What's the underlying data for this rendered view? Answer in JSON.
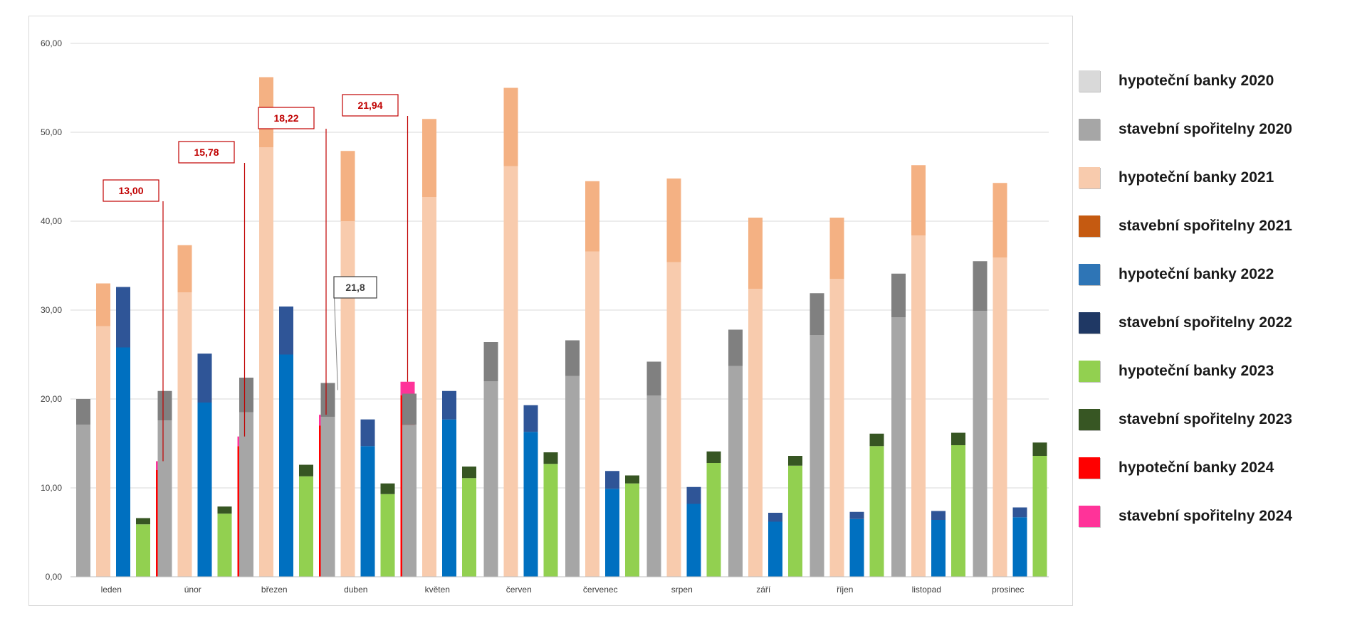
{
  "chart_data": {
    "type": "bar",
    "ylim": [
      0,
      60
    ],
    "yticks": [
      "0,00",
      "10,00",
      "20,00",
      "30,00",
      "40,00",
      "50,00",
      "60,00"
    ],
    "grid": true,
    "legend_position": "right",
    "categories": [
      "leden",
      "únor",
      "březen",
      "duben",
      "květen",
      "červen",
      "červenec",
      "srpen",
      "září",
      "říjen",
      "listopad",
      "prosinec"
    ],
    "stacks": [
      {
        "year": "2020",
        "segments": [
          {
            "name": "hypoteční banky 2020",
            "color": "#a6a6a6",
            "values": [
              17.1,
              17.6,
              18.5,
              18.0,
              17.1,
              22.0,
              22.6,
              20.4,
              23.7,
              27.2,
              29.2,
              29.9
            ]
          },
          {
            "name": "stavební spořitelny 2020",
            "color": "#808080",
            "values": [
              2.9,
              3.3,
              3.9,
              3.8,
              3.5,
              4.4,
              4.0,
              3.8,
              4.1,
              4.7,
              4.9,
              5.6
            ]
          }
        ]
      },
      {
        "year": "2021",
        "segments": [
          {
            "name": "hypoteční banky 2021",
            "color": "#f8cbad",
            "values": [
              28.2,
              32.0,
              48.3,
              40.0,
              42.7,
              46.2,
              36.6,
              35.4,
              32.4,
              33.5,
              38.4,
              35.9
            ]
          },
          {
            "name": "stavební spořitelny 2021",
            "color": "#f4b183",
            "values": [
              4.8,
              5.3,
              7.9,
              7.9,
              8.8,
              8.8,
              7.9,
              9.4,
              8.0,
              6.9,
              7.9,
              8.4
            ]
          }
        ]
      },
      {
        "year": "2022",
        "segments": [
          {
            "name": "hypoteční banky 2022",
            "color": "#0070c0",
            "values": [
              25.8,
              19.6,
              25.0,
              14.7,
              17.7,
              16.3,
              9.9,
              8.2,
              6.2,
              6.5,
              6.4,
              6.7
            ]
          },
          {
            "name": "stavební spořitelny 2022",
            "color": "#2f5597",
            "values": [
              6.8,
              5.5,
              5.4,
              3.0,
              3.2,
              3.0,
              2.0,
              1.9,
              1.0,
              0.8,
              1.0,
              1.1
            ]
          }
        ]
      },
      {
        "year": "2023",
        "segments": [
          {
            "name": "hypoteční banky 2023",
            "color": "#92d050",
            "values": [
              5.9,
              7.1,
              11.3,
              9.3,
              11.1,
              12.7,
              10.5,
              12.8,
              12.5,
              14.7,
              14.8,
              13.6
            ]
          },
          {
            "name": "stavební spořitelny 2023",
            "color": "#375623",
            "values": [
              0.7,
              0.8,
              1.3,
              1.2,
              1.3,
              1.3,
              0.9,
              1.3,
              1.1,
              1.4,
              1.4,
              1.5
            ]
          }
        ]
      },
      {
        "year": "2024",
        "segments": [
          {
            "name": "hypoteční banky 2024",
            "color": "#ff0000",
            "values": [
              12.0,
              14.7,
              17.0,
              20.4,
              null,
              null,
              null,
              null,
              null,
              null,
              null,
              null
            ]
          },
          {
            "name": "stavební spořitelny 2024",
            "color": "#ff3399",
            "values": [
              1.0,
              1.08,
              1.22,
              1.54,
              null,
              null,
              null,
              null,
              null,
              null,
              null,
              null
            ]
          }
        ]
      }
    ],
    "annotations": [
      {
        "text": "13,00",
        "category": "leden",
        "color": "#c00000"
      },
      {
        "text": "15,78",
        "category": "únor",
        "color": "#c00000"
      },
      {
        "text": "18,22",
        "category": "březen",
        "color": "#c00000"
      },
      {
        "text": "21,94",
        "category": "duben",
        "color": "#c00000"
      },
      {
        "text": "21,8",
        "category": "duben",
        "color": "#404040"
      }
    ]
  },
  "legend": {
    "items": [
      {
        "label": "hypoteční banky 2020",
        "color": "#d9d9d9"
      },
      {
        "label": "stavební spořitelny 2020",
        "color": "#a6a6a6"
      },
      {
        "label": "hypoteční banky 2021",
        "color": "#f8cbad"
      },
      {
        "label": "stavební spořitelny 2021",
        "color": "#c55a11"
      },
      {
        "label": "hypoteční banky 2022",
        "color": "#2e75b6"
      },
      {
        "label": "stavební spořitelny 2022",
        "color": "#1f3864"
      },
      {
        "label": "hypoteční banky 2023",
        "color": "#92d050"
      },
      {
        "label": "stavební spořitelny 2023",
        "color": "#375623"
      },
      {
        "label": "hypoteční banky 2024",
        "color": "#ff0000"
      },
      {
        "label": "stavební spořitelny 2024",
        "color": "#ff3399"
      }
    ]
  }
}
